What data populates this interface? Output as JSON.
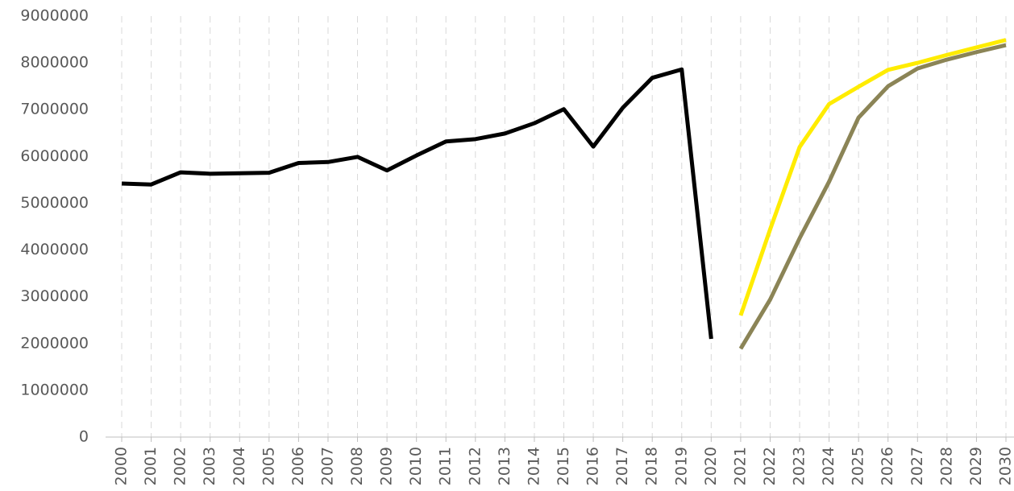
{
  "chart_data": {
    "type": "line",
    "categories": [
      "2000",
      "2001",
      "2002",
      "2003",
      "2004",
      "2005",
      "2006",
      "2007",
      "2008",
      "2009",
      "2010",
      "2011",
      "2012",
      "2013",
      "2014",
      "2015",
      "2016",
      "2017",
      "2018",
      "2019",
      "2020",
      "2021",
      "2022",
      "2023",
      "2024",
      "2025",
      "2026",
      "2027",
      "2028",
      "2029",
      "2030"
    ],
    "series": [
      {
        "color": "#000000",
        "values": [
          5420000,
          5400000,
          5660000,
          5630000,
          5640000,
          5650000,
          5860000,
          5880000,
          5990000,
          5700000,
          6020000,
          6320000,
          6370000,
          6490000,
          6710000,
          7010000,
          6210000,
          7040000,
          7680000,
          7860000,
          2100000,
          null,
          null,
          null,
          null,
          null,
          null,
          null,
          null,
          null,
          null
        ]
      },
      {
        "color": "#ffec00",
        "values": [
          null,
          null,
          null,
          null,
          null,
          null,
          null,
          null,
          null,
          null,
          null,
          null,
          null,
          null,
          null,
          null,
          null,
          null,
          null,
          null,
          null,
          2600000,
          4440000,
          6200000,
          7120000,
          7490000,
          7850000,
          8000000,
          8170000,
          8330000,
          8490000
        ]
      },
      {
        "color": "#8b8456",
        "values": [
          null,
          null,
          null,
          null,
          null,
          null,
          null,
          null,
          null,
          null,
          null,
          null,
          null,
          null,
          null,
          null,
          null,
          null,
          null,
          null,
          null,
          1890000,
          2940000,
          4250000,
          5460000,
          6830000,
          7500000,
          7880000,
          8070000,
          8230000,
          8380000
        ]
      }
    ],
    "ylim": [
      0,
      9000000
    ],
    "yticks": [
      0,
      1000000,
      2000000,
      3000000,
      4000000,
      5000000,
      6000000,
      7000000,
      8000000,
      9000000
    ],
    "grid": true
  }
}
